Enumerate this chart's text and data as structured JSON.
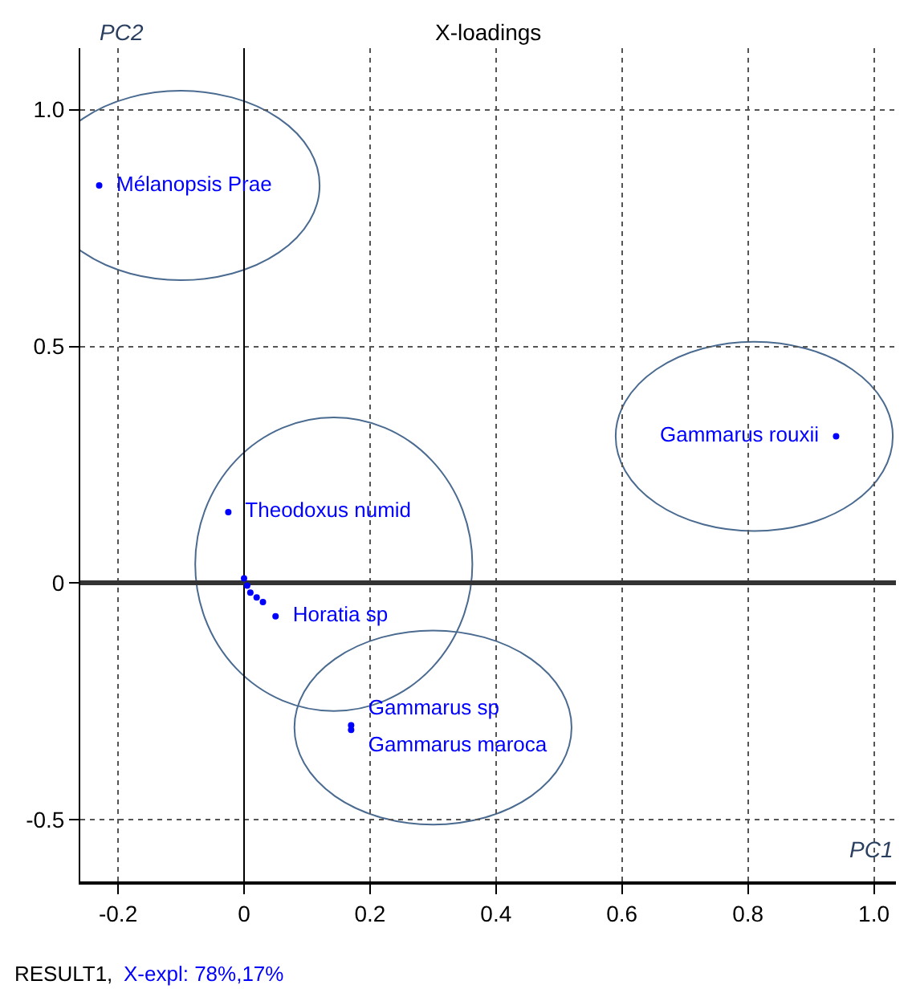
{
  "chart_data": {
    "type": "scatter",
    "title": "X-loadings",
    "xlabel": "PC1",
    "ylabel": "PC2",
    "annotations": [
      "RESULT1,",
      "X-expl: 78%,17%"
    ],
    "x": [
      -0.23,
      0.94,
      -0.025,
      0.0,
      0.005,
      0.01,
      0.02,
      0.03,
      0.05,
      0.17,
      0.17
    ],
    "series": [
      {
        "color": "#0000ff",
        "values": [
          0.84,
          0.31,
          0.15,
          0.01,
          -0.005,
          -0.02,
          -0.03,
          -0.04,
          -0.07,
          -0.3,
          -0.31
        ],
        "value_labels": [
          "Mélanopsis Prae",
          "Gammarus rouxii",
          "Theodoxus numid",
          null,
          null,
          null,
          null,
          null,
          "Horatia sp",
          "Gammarus sp",
          "Gammarus maroca"
        ]
      }
    ],
    "xlim": [
      -0.26,
      1.035
    ],
    "ylim": [
      -0.63,
      1.13
    ],
    "xticks": [
      -0.2,
      0,
      0.2,
      0.4,
      0.6,
      0.8,
      {
        "value": 1.0,
        "label": "1.0"
      }
    ],
    "yticks": [
      -0.5,
      0,
      0.5,
      {
        "value": 1.0,
        "label": "1.0"
      }
    ],
    "grid": true,
    "marker": "circle"
  }
}
